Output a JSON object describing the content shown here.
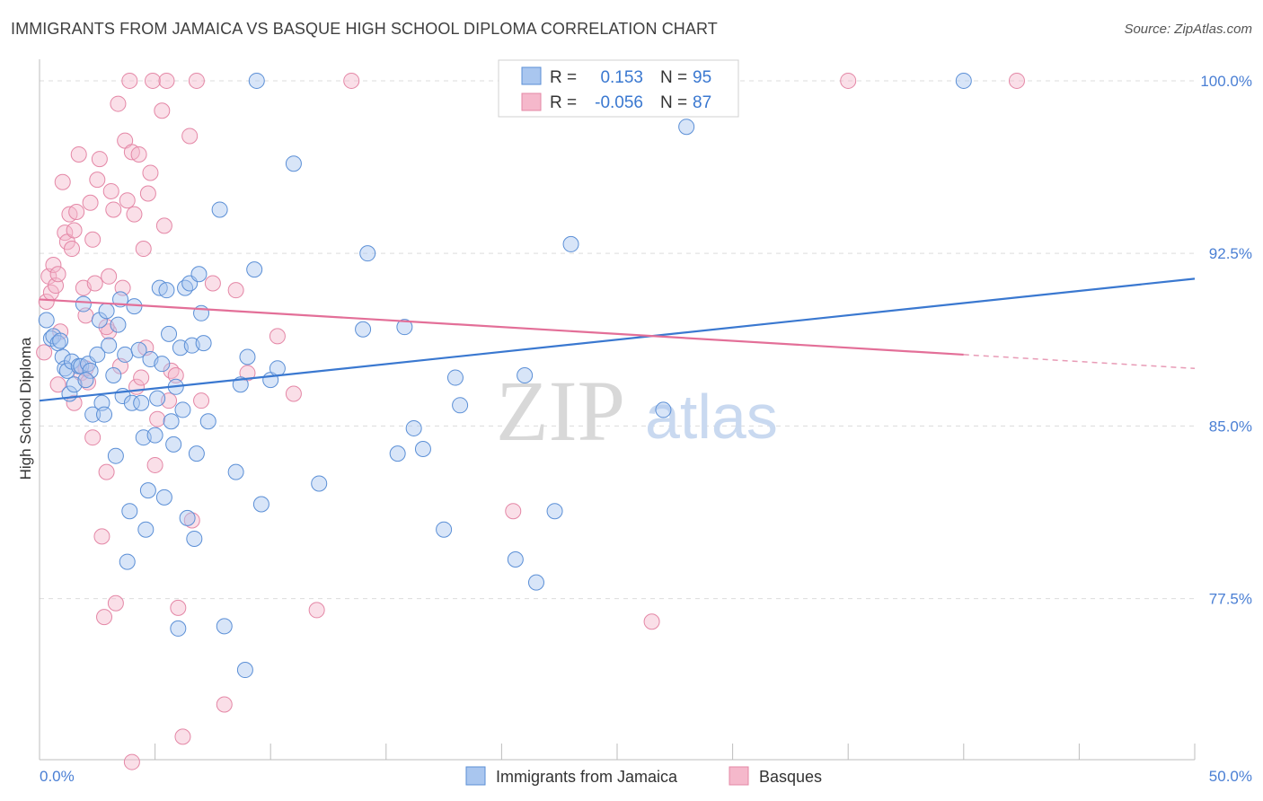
{
  "title": "IMMIGRANTS FROM JAMAICA VS BASQUE HIGH SCHOOL DIPLOMA CORRELATION CHART",
  "source": "Source: ZipAtlas.com",
  "watermark": {
    "zip": "ZIP",
    "atlas": "atlas"
  },
  "stats": {
    "r_label": "R =",
    "n_label": "N =",
    "rows": [
      {
        "r": "0.153",
        "n": "95",
        "color": "#a9c6ef",
        "stroke": "#5b8fd6"
      },
      {
        "r": "-0.056",
        "n": "87",
        "color": "#f5b8cb",
        "stroke": "#e487a6"
      }
    ]
  },
  "legend": [
    {
      "label": "Immigrants from Jamaica",
      "color": "#a9c6ef",
      "stroke": "#5b8fd6"
    },
    {
      "label": "Basques",
      "color": "#f5b8cb",
      "stroke": "#e487a6"
    }
  ],
  "chart_data": {
    "type": "scatter",
    "title": "IMMIGRANTS FROM JAMAICA VS BASQUE HIGH SCHOOL DIPLOMA CORRELATION CHART",
    "xlabel": "",
    "ylabel": "High School Diploma",
    "xlim": [
      0,
      50
    ],
    "ylim": [
      70.5,
      100.7
    ],
    "x_tick_labels": [
      "0.0%",
      "50.0%"
    ],
    "y_ticks": [
      77.5,
      85.0,
      92.5,
      100.0
    ],
    "y_tick_labels": [
      "77.5%",
      "85.0%",
      "92.5%",
      "100.0%"
    ],
    "grid": true,
    "legend_position": "bottom",
    "series": [
      {
        "name": "Immigrants from Jamaica",
        "color": "#5b8fd6",
        "fill": "#a9c6ef",
        "trend": {
          "x": [
            0,
            50
          ],
          "y": [
            86.1,
            91.4
          ]
        },
        "points": [
          [
            0.3,
            89.6
          ],
          [
            0.5,
            88.8
          ],
          [
            0.6,
            88.9
          ],
          [
            0.8,
            88.6
          ],
          [
            0.9,
            88.7
          ],
          [
            1.0,
            88.0
          ],
          [
            1.1,
            87.5
          ],
          [
            1.2,
            87.4
          ],
          [
            1.3,
            86.4
          ],
          [
            1.4,
            87.8
          ],
          [
            1.5,
            86.8
          ],
          [
            1.7,
            87.6
          ],
          [
            1.8,
            87.6
          ],
          [
            1.9,
            90.3
          ],
          [
            2.1,
            87.7
          ],
          [
            2.2,
            87.4
          ],
          [
            2.3,
            85.5
          ],
          [
            2.5,
            88.1
          ],
          [
            2.6,
            89.6
          ],
          [
            2.7,
            86.0
          ],
          [
            2.8,
            85.5
          ],
          [
            2.9,
            90.0
          ],
          [
            3.0,
            88.5
          ],
          [
            3.2,
            87.2
          ],
          [
            3.3,
            83.7
          ],
          [
            3.4,
            89.4
          ],
          [
            3.6,
            86.3
          ],
          [
            3.7,
            88.1
          ],
          [
            3.8,
            79.1
          ],
          [
            3.9,
            81.3
          ],
          [
            4.0,
            86.0
          ],
          [
            4.1,
            90.2
          ],
          [
            4.3,
            88.3
          ],
          [
            4.4,
            86.0
          ],
          [
            4.5,
            84.5
          ],
          [
            4.6,
            80.5
          ],
          [
            4.7,
            82.2
          ],
          [
            4.8,
            87.9
          ],
          [
            5.0,
            84.6
          ],
          [
            5.1,
            86.2
          ],
          [
            5.2,
            91.0
          ],
          [
            5.3,
            87.7
          ],
          [
            5.4,
            81.9
          ],
          [
            5.5,
            90.9
          ],
          [
            5.6,
            89.0
          ],
          [
            5.7,
            85.2
          ],
          [
            5.8,
            84.2
          ],
          [
            5.9,
            86.7
          ],
          [
            6.0,
            76.2
          ],
          [
            6.1,
            88.4
          ],
          [
            6.2,
            85.7
          ],
          [
            6.3,
            91.0
          ],
          [
            6.4,
            81.0
          ],
          [
            6.5,
            91.2
          ],
          [
            6.6,
            88.5
          ],
          [
            6.7,
            80.1
          ],
          [
            6.8,
            83.8
          ],
          [
            6.9,
            91.6
          ],
          [
            7.0,
            89.9
          ],
          [
            7.3,
            85.2
          ],
          [
            7.8,
            94.4
          ],
          [
            8.0,
            76.3
          ],
          [
            8.5,
            83.0
          ],
          [
            8.7,
            86.8
          ],
          [
            8.9,
            74.4
          ],
          [
            9.0,
            88.0
          ],
          [
            9.3,
            91.8
          ],
          [
            9.6,
            81.6
          ],
          [
            10.0,
            87.0
          ],
          [
            10.3,
            87.5
          ],
          [
            11.0,
            96.4
          ],
          [
            12.1,
            82.5
          ],
          [
            14.0,
            89.2
          ],
          [
            14.2,
            92.5
          ],
          [
            15.5,
            83.8
          ],
          [
            15.8,
            89.3
          ],
          [
            16.2,
            84.9
          ],
          [
            16.6,
            84.0
          ],
          [
            17.5,
            80.5
          ],
          [
            18.0,
            87.1
          ],
          [
            18.2,
            85.9
          ],
          [
            20.6,
            79.2
          ],
          [
            21.0,
            87.2
          ],
          [
            21.5,
            78.2
          ],
          [
            22.3,
            81.3
          ],
          [
            23.0,
            92.9
          ],
          [
            27.0,
            85.7
          ],
          [
            28.0,
            98.0
          ],
          [
            40.0,
            100.0
          ],
          [
            9.4,
            100.0
          ],
          [
            3.5,
            90.5
          ],
          [
            7.1,
            88.6
          ],
          [
            2.0,
            87.0
          ]
        ]
      },
      {
        "name": "Basques",
        "color": "#e487a6",
        "fill": "#f5b8cb",
        "trend": {
          "x": [
            0,
            40
          ],
          "y": [
            90.5,
            88.1
          ]
        },
        "trend_dashed": {
          "x": [
            40,
            50
          ],
          "y": [
            88.1,
            87.5
          ]
        },
        "points": [
          [
            0.2,
            88.2
          ],
          [
            0.3,
            90.4
          ],
          [
            0.4,
            91.5
          ],
          [
            0.5,
            90.8
          ],
          [
            0.6,
            92.0
          ],
          [
            0.7,
            91.1
          ],
          [
            0.8,
            86.8
          ],
          [
            0.9,
            89.1
          ],
          [
            1.0,
            95.6
          ],
          [
            1.1,
            93.4
          ],
          [
            1.2,
            93.0
          ],
          [
            1.3,
            94.2
          ],
          [
            1.4,
            92.7
          ],
          [
            1.5,
            93.5
          ],
          [
            1.6,
            94.3
          ],
          [
            1.7,
            96.8
          ],
          [
            1.8,
            87.3
          ],
          [
            1.9,
            91.0
          ],
          [
            2.0,
            89.8
          ],
          [
            2.1,
            86.9
          ],
          [
            2.2,
            94.7
          ],
          [
            2.3,
            93.1
          ],
          [
            2.4,
            91.2
          ],
          [
            2.5,
            95.7
          ],
          [
            2.6,
            96.6
          ],
          [
            2.7,
            80.2
          ],
          [
            2.8,
            76.7
          ],
          [
            2.9,
            83.0
          ],
          [
            3.0,
            89.1
          ],
          [
            3.1,
            95.2
          ],
          [
            3.2,
            94.4
          ],
          [
            3.3,
            77.3
          ],
          [
            3.4,
            99.0
          ],
          [
            3.5,
            87.6
          ],
          [
            3.6,
            91.0
          ],
          [
            3.7,
            97.4
          ],
          [
            3.8,
            94.8
          ],
          [
            3.9,
            100.0
          ],
          [
            4.0,
            96.9
          ],
          [
            4.1,
            94.2
          ],
          [
            4.2,
            86.7
          ],
          [
            4.3,
            96.8
          ],
          [
            4.4,
            87.1
          ],
          [
            4.5,
            92.7
          ],
          [
            4.6,
            88.4
          ],
          [
            4.7,
            95.1
          ],
          [
            4.8,
            96.0
          ],
          [
            4.9,
            100.0
          ],
          [
            5.0,
            83.3
          ],
          [
            5.1,
            85.3
          ],
          [
            5.3,
            98.7
          ],
          [
            5.4,
            93.7
          ],
          [
            5.5,
            100.0
          ],
          [
            5.6,
            86.1
          ],
          [
            5.7,
            87.4
          ],
          [
            6.0,
            77.1
          ],
          [
            6.2,
            71.5
          ],
          [
            6.5,
            97.6
          ],
          [
            6.8,
            100.0
          ],
          [
            7.0,
            86.1
          ],
          [
            7.5,
            91.2
          ],
          [
            8.0,
            72.9
          ],
          [
            8.5,
            90.9
          ],
          [
            9.0,
            87.3
          ],
          [
            10.3,
            88.9
          ],
          [
            11.0,
            86.4
          ],
          [
            12.0,
            77.0
          ],
          [
            13.5,
            100.0
          ],
          [
            20.5,
            81.3
          ],
          [
            26.5,
            76.5
          ],
          [
            35.0,
            100.0
          ],
          [
            42.3,
            100.0
          ],
          [
            4.0,
            70.4
          ],
          [
            2.3,
            84.5
          ],
          [
            2.9,
            89.3
          ],
          [
            1.5,
            86.0
          ],
          [
            6.6,
            80.9
          ],
          [
            0.8,
            91.6
          ],
          [
            2.0,
            87.5
          ],
          [
            3.0,
            91.5
          ],
          [
            5.9,
            87.2
          ]
        ]
      }
    ]
  }
}
